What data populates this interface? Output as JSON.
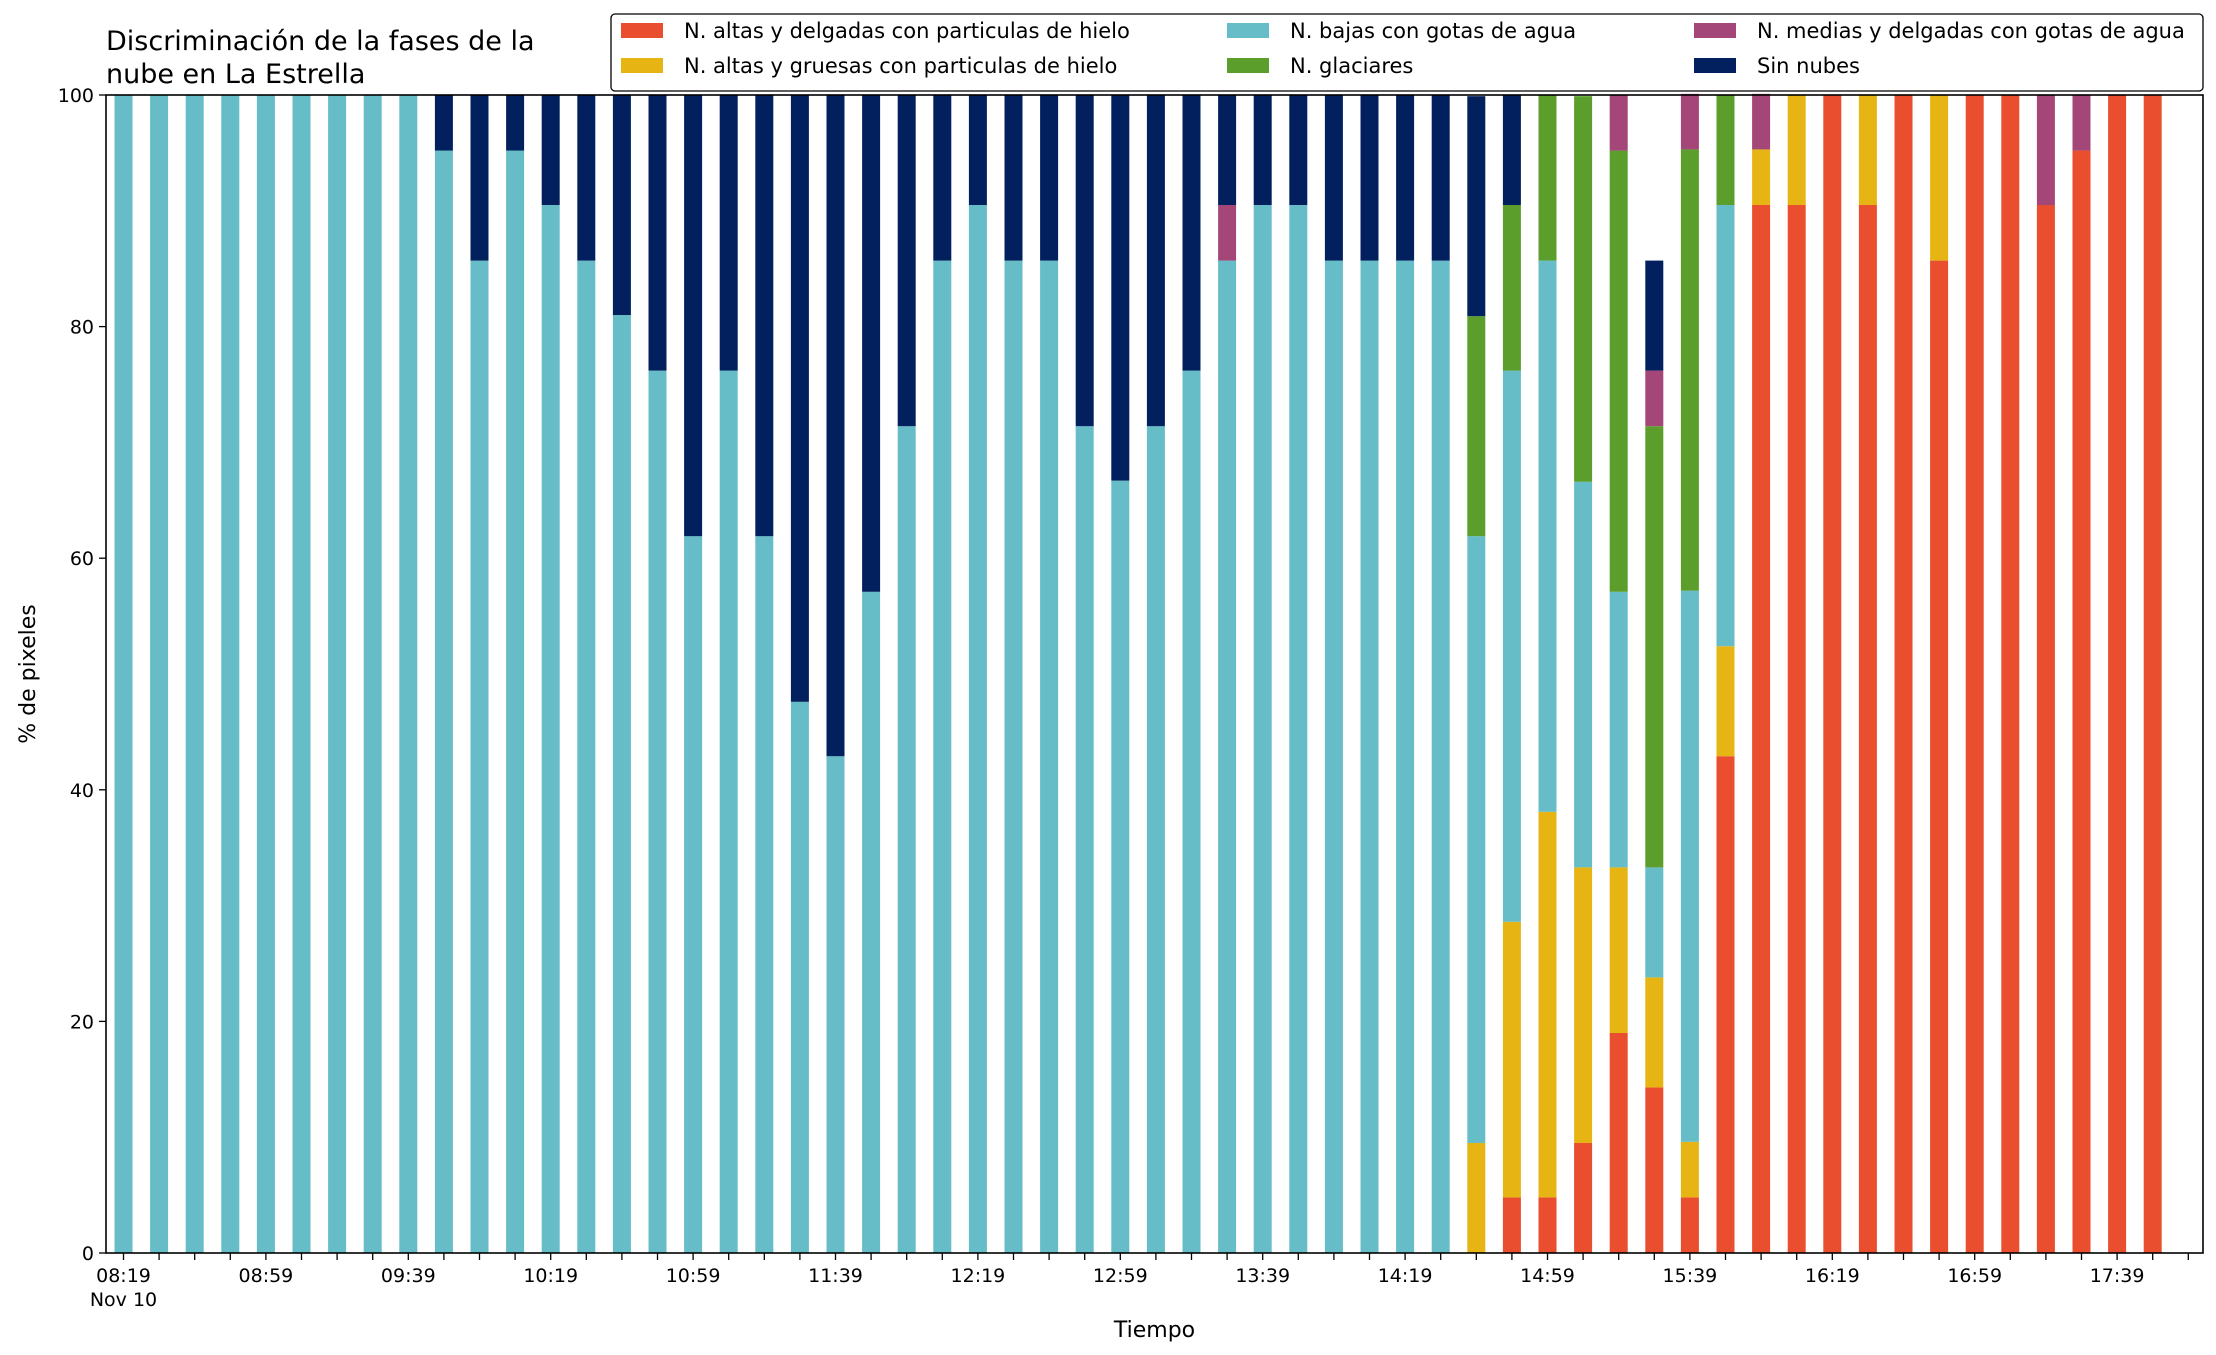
{
  "chart_data": {
    "type": "bar",
    "stacked": true,
    "title_lines": [
      "Discriminación de la fases de la",
      "nube en La Estrella"
    ],
    "xlabel": "Tiempo",
    "ylabel": "% de pixeles",
    "ylim": [
      0,
      100
    ],
    "yticks": [
      0,
      20,
      40,
      60,
      80,
      100
    ],
    "grid": false,
    "legend_position": "top-right",
    "x_tick_labels": [
      "08:19",
      "08:59",
      "09:39",
      "10:19",
      "10:59",
      "11:39",
      "12:19",
      "12:59",
      "13:39",
      "14:19",
      "14:59",
      "15:39",
      "16:19",
      "16:59",
      "17:39"
    ],
    "x_tick_sublabel": "Nov 10",
    "bar_count": 58,
    "series": [
      {
        "name": "N. altas y delgadas con particulas de hielo",
        "color": "#e94e2e",
        "values": [
          0,
          0,
          0,
          0,
          0,
          0,
          0,
          0,
          0,
          0,
          0,
          0,
          0,
          0,
          0,
          0,
          0,
          0,
          0,
          0,
          0,
          0,
          0,
          0,
          0,
          0,
          0,
          0,
          0,
          0,
          0,
          0,
          0,
          0,
          0,
          0,
          0,
          0,
          0,
          4.8,
          4.8,
          9.5,
          19.0,
          14.3,
          4.8,
          42.9,
          90.5,
          90.5,
          100,
          90.5,
          100,
          85.7,
          100,
          100,
          90.5,
          95.2,
          100,
          100
        ]
      },
      {
        "name": "N. altas y gruesas con particulas de hielo",
        "color": "#e6b514",
        "values": [
          0,
          0,
          0,
          0,
          0,
          0,
          0,
          0,
          0,
          0,
          0,
          0,
          0,
          0,
          0,
          0,
          0,
          0,
          0,
          0,
          0,
          0,
          0,
          0,
          0,
          0,
          0,
          0,
          0,
          0,
          0,
          0,
          0,
          0,
          0,
          0,
          0,
          0,
          9.5,
          23.8,
          33.3,
          23.8,
          14.3,
          9.5,
          4.8,
          9.5,
          4.8,
          9.5,
          0,
          9.5,
          0,
          14.3,
          0,
          0,
          0,
          0,
          0,
          0
        ]
      },
      {
        "name": "N. bajas con gotas de agua",
        "color": "#66bdc8",
        "values": [
          100,
          100,
          100,
          100,
          100,
          100,
          100,
          100,
          100,
          95.2,
          85.7,
          95.2,
          90.5,
          85.7,
          81.0,
          76.2,
          61.9,
          76.2,
          61.9,
          47.6,
          42.9,
          57.1,
          71.4,
          85.7,
          90.5,
          85.7,
          85.7,
          71.4,
          66.7,
          71.4,
          76.2,
          85.7,
          90.5,
          90.5,
          85.7,
          85.7,
          85.7,
          85.7,
          52.4,
          47.6,
          47.6,
          33.3,
          23.8,
          9.5,
          47.6,
          38.1,
          0,
          0,
          0,
          0,
          0,
          0,
          0,
          0,
          0,
          0,
          0,
          0
        ]
      },
      {
        "name": "N. glaciares",
        "color": "#5c9e2b",
        "values": [
          0,
          0,
          0,
          0,
          0,
          0,
          0,
          0,
          0,
          0,
          0,
          0,
          0,
          0,
          0,
          0,
          0,
          0,
          0,
          0,
          0,
          0,
          0,
          0,
          0,
          0,
          0,
          0,
          0,
          0,
          0,
          0,
          0,
          0,
          0,
          0,
          0,
          0,
          19.0,
          14.3,
          14.3,
          33.3,
          38.1,
          38.1,
          38.1,
          9.5,
          0,
          0,
          0,
          0,
          0,
          0,
          0,
          0,
          0,
          0,
          0,
          0
        ]
      },
      {
        "name": "N. medias y delgadas con gotas de agua",
        "color": "#a44778",
        "values": [
          0,
          0,
          0,
          0,
          0,
          0,
          0,
          0,
          0,
          0,
          0,
          0,
          0,
          0,
          0,
          0,
          0,
          0,
          0,
          0,
          0,
          0,
          0,
          0,
          0,
          0,
          0,
          0,
          0,
          0,
          0,
          4.8,
          0,
          0,
          0,
          0,
          0,
          0,
          0,
          0,
          0,
          0,
          4.8,
          4.8,
          4.8,
          0,
          4.8,
          0,
          0,
          0,
          0,
          0,
          0,
          0,
          9.5,
          4.8,
          0,
          0
        ]
      },
      {
        "name": "Sin nubes",
        "color": "#03205e",
        "values": [
          0,
          0,
          0,
          0,
          0,
          0,
          0,
          0,
          0,
          4.8,
          14.3,
          4.8,
          9.5,
          14.3,
          19.0,
          23.8,
          38.1,
          23.8,
          38.1,
          52.4,
          57.1,
          42.9,
          28.6,
          14.3,
          9.5,
          14.3,
          14.3,
          28.6,
          33.3,
          28.6,
          23.8,
          9.5,
          9.5,
          9.5,
          14.3,
          14.3,
          14.3,
          14.3,
          19.0,
          9.5,
          0,
          0,
          0,
          9.5,
          0,
          0,
          0,
          0,
          0,
          0,
          0,
          0,
          0,
          0,
          0,
          0,
          0,
          0
        ]
      }
    ]
  }
}
